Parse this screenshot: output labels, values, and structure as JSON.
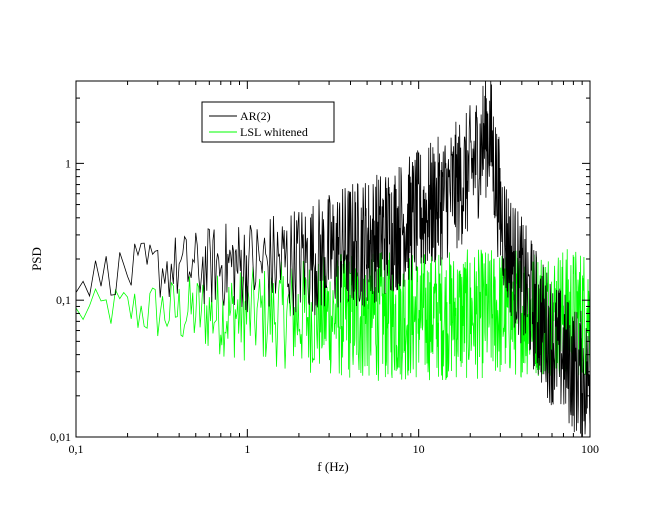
{
  "chart_data": {
    "type": "line",
    "title": "",
    "xlabel": "f (Hz)",
    "ylabel": "PSD",
    "xscale": "log",
    "yscale": "log",
    "xlim": [
      0.1,
      100
    ],
    "ylim": [
      0.01,
      4
    ],
    "x_ticks": [
      {
        "value": 0.1,
        "label": "0,1"
      },
      {
        "value": 1,
        "label": "1"
      },
      {
        "value": 10,
        "label": "10"
      },
      {
        "value": 100,
        "label": "100"
      }
    ],
    "y_ticks": [
      {
        "value": 0.01,
        "label": "0,01"
      },
      {
        "value": 0.1,
        "label": "0,1"
      },
      {
        "value": 1,
        "label": "1"
      }
    ],
    "grid": false,
    "legend": {
      "position": "top-left"
    },
    "series": [
      {
        "name": "AR(2)",
        "color": "#000000",
        "x": [
          0.1,
          0.15,
          0.2,
          0.3,
          0.5,
          0.7,
          1,
          1.5,
          2,
          3,
          4,
          5,
          7,
          10,
          13,
          16,
          19,
          21,
          23,
          24.5,
          25.5,
          26.5,
          28,
          30,
          33,
          37,
          42,
          50,
          60,
          70,
          80,
          90,
          100
        ],
        "values": [
          0.13,
          0.16,
          0.16,
          0.17,
          0.17,
          0.18,
          0.18,
          0.19,
          0.2,
          0.22,
          0.25,
          0.27,
          0.33,
          0.42,
          0.52,
          0.65,
          0.8,
          1.0,
          1.3,
          1.65,
          1.75,
          1.45,
          0.85,
          0.45,
          0.25,
          0.17,
          0.12,
          0.075,
          0.05,
          0.04,
          0.032,
          0.028,
          0.025
        ]
      },
      {
        "name": "LSL whitened",
        "color": "#00ff00",
        "x": [
          0.1,
          0.15,
          0.2,
          0.3,
          0.5,
          0.7,
          1,
          1.5,
          2,
          3,
          5,
          7,
          10,
          15,
          20,
          25,
          30,
          40,
          50,
          70,
          100
        ],
        "values": [
          0.08,
          0.088,
          0.085,
          0.083,
          0.082,
          0.08,
          0.078,
          0.078,
          0.078,
          0.078,
          0.077,
          0.077,
          0.077,
          0.078,
          0.078,
          0.08,
          0.08,
          0.082,
          0.082,
          0.082,
          0.082
        ]
      }
    ]
  }
}
